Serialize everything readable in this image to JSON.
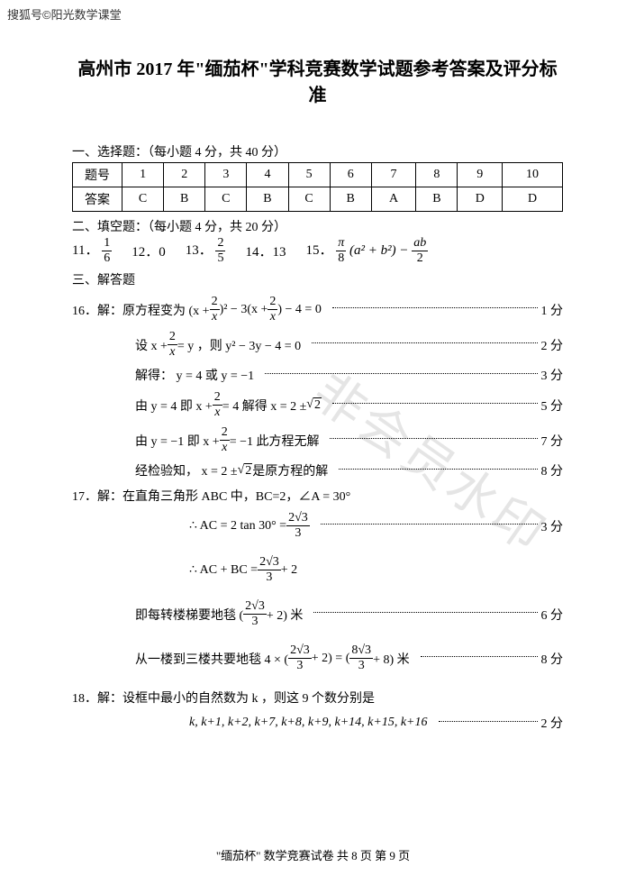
{
  "watermark_top": "搜狐号©阳光数学课堂",
  "watermark_diag": "非会员水印",
  "title": "高州市 2017 年\"缅茄杯\"学科竞赛数学试题参考答案及评分标准",
  "sec1": {
    "head": "一、选择题：（每小题 4 分，共 40 分）",
    "row_label_1": "题号",
    "row_label_2": "答案",
    "nums": [
      "1",
      "2",
      "3",
      "4",
      "5",
      "6",
      "7",
      "8",
      "9",
      "10"
    ],
    "ans": [
      "C",
      "B",
      "C",
      "B",
      "C",
      "B",
      "A",
      "B",
      "D",
      "D"
    ]
  },
  "sec2": {
    "head": "二、填空题：（每小题 4 分，共 20 分）",
    "q11_label": "11．",
    "q11_num": "1",
    "q11_den": "6",
    "q12": "12．0",
    "q13_label": "13．",
    "q13_num": "2",
    "q13_den": "5",
    "q14": "14．13",
    "q15_label": "15．",
    "q15_frac1_num": "π",
    "q15_frac1_den": "8",
    "q15_mid": "(a² + b²) −",
    "q15_frac2_num": "ab",
    "q15_frac2_den": "2"
  },
  "sec3": {
    "head": "三、解答题"
  },
  "q16": {
    "l1_pre": "16．解：原方程变为 (x +",
    "frac_2x_num": "2",
    "frac_2x_den": "x",
    "l1_mid": ")² − 3(x +",
    "l1_post": ") − 4 = 0",
    "s1": "1 分",
    "l2_pre": "设 x +",
    "l2_mid": " = y ，则 y² − 3y − 4 = 0",
    "s2": "2 分",
    "l3": "解得： y = 4 或 y = −1",
    "s3": "3 分",
    "l4_pre": "由 y = 4  即 x +",
    "l4_mid": " = 4    解得 x = 2 ±",
    "sqrt2": "2",
    "s4": "5 分",
    "l5_pre": "由 y = −1  即 x +",
    "l5_mid": " = −1   此方程无解",
    "s5": "7 分",
    "l6_pre": "经检验知， x = 2 ±",
    "l6_post": " 是原方程的解",
    "s6": "8 分"
  },
  "q17": {
    "l1": "17．解：在直角三角形 ABC 中，BC=2，∠A = 30°",
    "l2_pre": "∴ AC = 2 tan 30° = ",
    "f_num": "2√3",
    "f_den": "3",
    "s1": "3 分",
    "l3_pre": "∴ AC + BC = ",
    "l3_post": " + 2",
    "l4_pre": "即每转楼梯要地毯 (",
    "l4_post": " + 2) 米",
    "s2": "6 分",
    "l5_pre": "从一楼到三楼共要地毯 4 × (",
    "l5_mid": " + 2) = (",
    "f2_num": "8√3",
    "f2_den": "3",
    "l5_post": " + 8) 米",
    "s3": "8 分"
  },
  "q18": {
    "l1": "18．解：设框中最小的自然数为 k ，则这 9 个数分别是",
    "l2": "k, k+1, k+2, k+7, k+8, k+9, k+14, k+15, k+16",
    "s1": "2 分"
  },
  "footer": "\"缅茄杯\" 数学竞赛试卷    共 8 页    第 9 页"
}
